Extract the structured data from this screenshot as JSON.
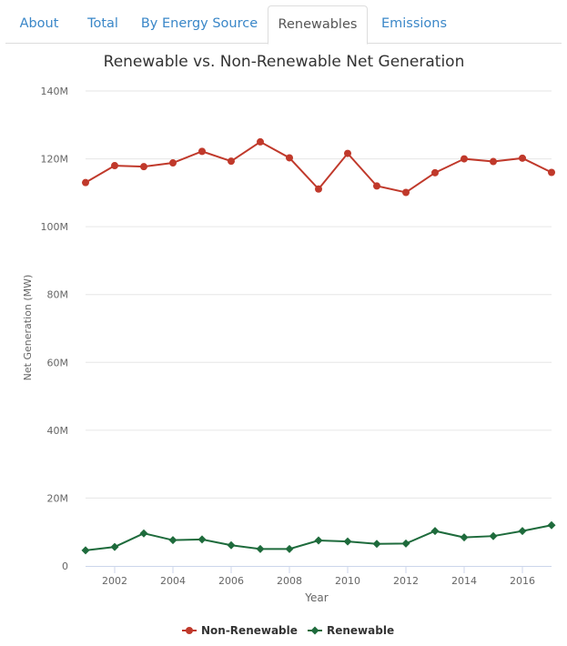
{
  "tabs": [
    {
      "label": "About",
      "active": false
    },
    {
      "label": "Total",
      "active": false
    },
    {
      "label": "By Energy Source",
      "active": false
    },
    {
      "label": "Renewables",
      "active": true
    },
    {
      "label": "Emissions",
      "active": false
    }
  ],
  "colors": {
    "non_renewable": "#c0392b",
    "renewable": "#1e6b3c",
    "tab_link": "#3a87c8",
    "grid": "#e6e6e6"
  },
  "chart_data": {
    "type": "line",
    "title": "Renewable vs. Non-Renewable Net Generation",
    "xlabel": "Year",
    "ylabel": "Net Generation (MW)",
    "x": [
      2001,
      2002,
      2003,
      2004,
      2005,
      2006,
      2007,
      2008,
      2009,
      2010,
      2011,
      2012,
      2013,
      2014,
      2015,
      2016,
      2017
    ],
    "xticks": [
      2002,
      2004,
      2006,
      2008,
      2010,
      2012,
      2014,
      2016
    ],
    "ylim": [
      0,
      140000000
    ],
    "yticks": [
      {
        "value": 0,
        "label": "0"
      },
      {
        "value": 20000000,
        "label": "20M"
      },
      {
        "value": 40000000,
        "label": "40M"
      },
      {
        "value": 60000000,
        "label": "60M"
      },
      {
        "value": 80000000,
        "label": "80M"
      },
      {
        "value": 100000000,
        "label": "100M"
      },
      {
        "value": 120000000,
        "label": "120M"
      },
      {
        "value": 140000000,
        "label": "140M"
      }
    ],
    "grid": true,
    "legend_position": "bottom-center",
    "series": [
      {
        "name": "Non-Renewable",
        "marker": "circle",
        "values": [
          113000000,
          118000000,
          117700000,
          118800000,
          122200000,
          119300000,
          125000000,
          120300000,
          111100000,
          121600000,
          112000000,
          110100000,
          115900000,
          120000000,
          119200000,
          120200000,
          116000000
        ]
      },
      {
        "name": "Renewable",
        "marker": "diamond",
        "values": [
          4600000,
          5600000,
          9600000,
          7600000,
          7800000,
          6100000,
          5000000,
          5000000,
          7500000,
          7200000,
          6500000,
          6600000,
          10300000,
          8400000,
          8800000,
          10300000,
          12000000
        ]
      }
    ]
  }
}
